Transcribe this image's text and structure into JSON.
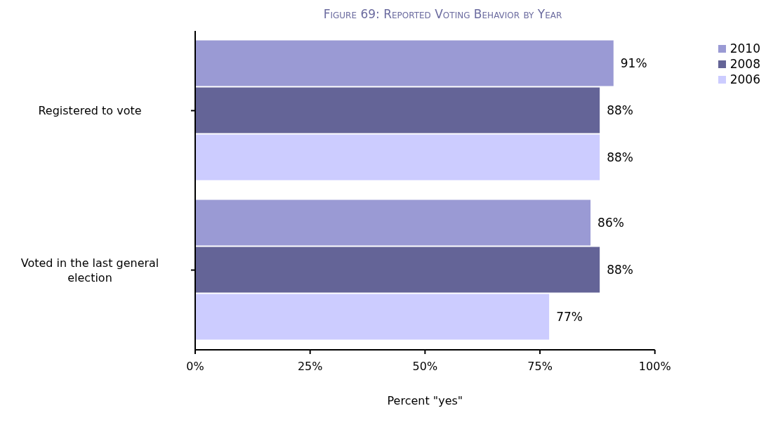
{
  "chart_data": {
    "type": "bar",
    "orientation": "horizontal",
    "title": "Figure 69: Reported Voting Behavior by Year",
    "xlabel": "Percent \"yes\"",
    "categories": [
      "Registered to vote",
      "Voted in the last general election"
    ],
    "series": [
      {
        "name": "2010",
        "color": "#9a9ad4",
        "values": [
          91,
          86
        ],
        "value_labels": [
          "91%",
          "86%"
        ]
      },
      {
        "name": "2008",
        "color": "#646497",
        "values": [
          88,
          88
        ],
        "value_labels": [
          "88%",
          "88%"
        ]
      },
      {
        "name": "2006",
        "color": "#ccccff",
        "values": [
          88,
          77
        ],
        "value_labels": [
          "88%",
          "77%"
        ]
      }
    ],
    "xlim": [
      0,
      100
    ],
    "xticks": [
      {
        "value": 0,
        "label": "0%"
      },
      {
        "value": 25,
        "label": "25%"
      },
      {
        "value": 50,
        "label": "50%"
      },
      {
        "value": 75,
        "label": "75%"
      },
      {
        "value": 100,
        "label": "100%"
      }
    ],
    "legend": "top right",
    "grid": false
  }
}
